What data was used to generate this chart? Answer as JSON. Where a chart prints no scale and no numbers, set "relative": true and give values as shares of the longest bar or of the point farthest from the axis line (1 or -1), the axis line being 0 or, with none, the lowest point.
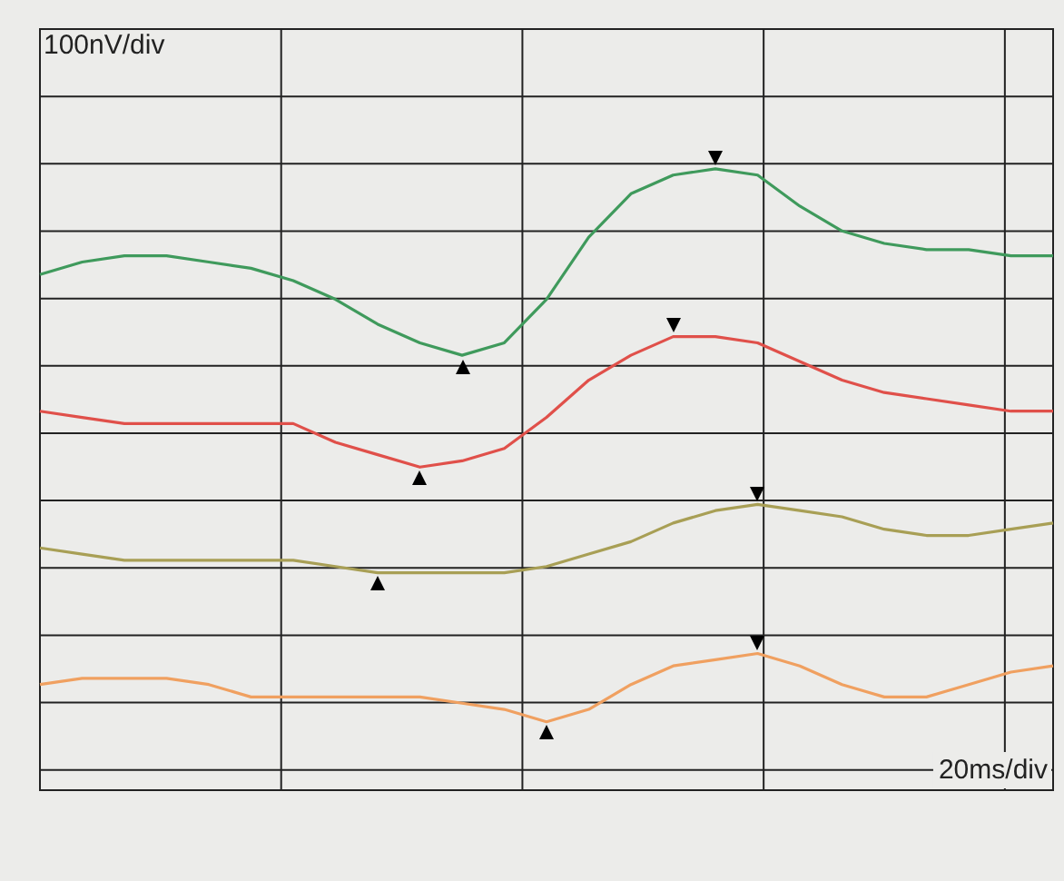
{
  "chart_data": {
    "type": "line",
    "relative": true,
    "grid": true,
    "legend": false,
    "marker": "none",
    "line_style": "solid",
    "annotations": [
      "100nV/div",
      "20ms/div"
    ],
    "categories": [
      null,
      null,
      null,
      null,
      null,
      null,
      null,
      null,
      null,
      null,
      null,
      null,
      null,
      null,
      null,
      null,
      null,
      null,
      null,
      null,
      null,
      null,
      null,
      null,
      null
    ],
    "series": [
      {
        "color": "#3f9a5c",
        "values": [
          0.83,
          0.85,
          0.86,
          0.86,
          0.85,
          0.84,
          0.82,
          0.79,
          0.75,
          0.72,
          0.7,
          0.72,
          0.79,
          0.89,
          0.96,
          0.99,
          1,
          0.99,
          0.94,
          0.9,
          0.88,
          0.87,
          0.87,
          0.86,
          0.86
        ]
      },
      {
        "color": "#e0504a",
        "values": [
          0.61,
          0.6,
          0.59,
          0.59,
          0.59,
          0.59,
          0.59,
          0.56,
          0.54,
          0.52,
          0.53,
          0.55,
          0.6,
          0.66,
          0.7,
          0.73,
          0.73,
          0.72,
          0.69,
          0.66,
          0.64,
          0.63,
          0.62,
          0.61,
          0.61
        ]
      },
      {
        "color": "#a89f55",
        "values": [
          0.39,
          0.38,
          0.37,
          0.37,
          0.37,
          0.37,
          0.37,
          0.36,
          0.35,
          0.35,
          0.35,
          0.35,
          0.36,
          0.38,
          0.4,
          0.43,
          0.45,
          0.46,
          0.45,
          0.44,
          0.42,
          0.41,
          0.41,
          0.42,
          0.43
        ]
      },
      {
        "color": "#f0a060",
        "values": [
          0.17,
          0.18,
          0.18,
          0.18,
          0.17,
          0.15,
          0.15,
          0.15,
          0.15,
          0.15,
          0.14,
          0.13,
          0.11,
          0.13,
          0.17,
          0.2,
          0.21,
          0.22,
          0.2,
          0.17,
          0.15,
          0.15,
          0.17,
          0.19,
          0.2
        ]
      }
    ]
  }
}
